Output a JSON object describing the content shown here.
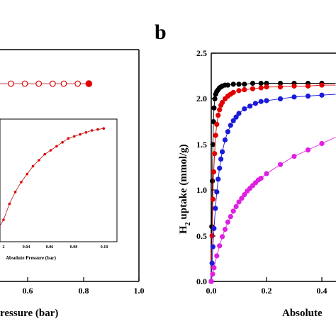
{
  "panel_b_label": "b",
  "left": {
    "xlabel": "ressure (bar)",
    "xticks": [
      "0.6",
      "0.8",
      "1.0"
    ],
    "inset_xlabel": "Absolute Pressure (bar)",
    "inset_xticks": [
      "2",
      "0.04",
      "0.06",
      "0.08",
      "0.10"
    ]
  },
  "right": {
    "ylabel_main": "H",
    "ylabel_sub": "2",
    "ylabel_rest": " uptake (mmol/g)",
    "xlabel": "Absolute",
    "yticks": [
      "0.0",
      "0.5",
      "1.0",
      "1.5",
      "2.0",
      "2.5"
    ],
    "xticks": [
      "0.0",
      "0.2",
      "0.4"
    ]
  },
  "colors": {
    "red": "#e00000",
    "black": "#000000",
    "blue": "#1a1adb",
    "magenta": "#e020e0",
    "darkred": "#b01010"
  },
  "chart_data": [
    {
      "type": "scatter",
      "panel": "a (partially visible)",
      "xlim": [
        0.45,
        1.0
      ],
      "series": [
        {
          "x": [
            0.48,
            0.54,
            0.59,
            0.64,
            0.69,
            0.73,
            0.78,
            0.82
          ],
          "y": [
            2.12,
            2.12,
            2.12,
            2.12,
            2.12,
            2.12,
            2.12,
            2.13
          ]
        }
      ]
    },
    {
      "type": "line",
      "panel": "a inset",
      "xlim": [
        0.02,
        0.105
      ],
      "series": [
        {
          "x": [
            0.02,
            0.025,
            0.03,
            0.035,
            0.04,
            0.045,
            0.05,
            0.055,
            0.06,
            0.065,
            0.07,
            0.075,
            0.08,
            0.085,
            0.09,
            0.095,
            0.1,
            0.105
          ],
          "y": [
            0.5,
            0.58,
            0.64,
            0.69,
            0.73,
            0.77,
            0.8,
            0.83,
            0.85,
            0.87,
            0.89,
            0.91,
            0.92,
            0.93,
            0.94,
            0.95,
            0.955,
            0.96
          ]
        }
      ]
    },
    {
      "type": "line",
      "panel": "b",
      "xlim": [
        0.0,
        0.45
      ],
      "ylim": [
        0.0,
        2.5
      ],
      "series": [
        {
          "color": "black",
          "x": [
            0,
            0.002,
            0.004,
            0.006,
            0.008,
            0.01,
            0.013,
            0.016,
            0.02,
            0.025,
            0.03,
            0.035,
            0.04,
            0.05,
            0.06,
            0.08,
            0.1,
            0.12,
            0.15,
            0.18,
            0.2,
            0.25,
            0.3,
            0.35,
            0.4,
            0.45
          ],
          "y": [
            0,
            0.6,
            1.1,
            1.5,
            1.75,
            1.9,
            2.0,
            2.05,
            2.08,
            2.1,
            2.12,
            2.13,
            2.14,
            2.15,
            2.15,
            2.16,
            2.16,
            2.16,
            2.17,
            2.17,
            2.17,
            2.17,
            2.17,
            2.17,
            2.17,
            2.17
          ]
        },
        {
          "color": "red",
          "x": [
            0,
            0.003,
            0.006,
            0.009,
            0.012,
            0.016,
            0.02,
            0.025,
            0.03,
            0.035,
            0.04,
            0.05,
            0.06,
            0.07,
            0.08,
            0.1,
            0.12,
            0.15,
            0.18,
            0.2,
            0.25,
            0.3,
            0.35,
            0.4,
            0.45
          ],
          "y": [
            0,
            0.5,
            0.9,
            1.2,
            1.4,
            1.6,
            1.72,
            1.82,
            1.88,
            1.93,
            1.96,
            2.0,
            2.03,
            2.05,
            2.07,
            2.09,
            2.1,
            2.11,
            2.12,
            2.13,
            2.13,
            2.14,
            2.14,
            2.15,
            2.15
          ]
        },
        {
          "color": "blue",
          "x": [
            0,
            0.003,
            0.006,
            0.01,
            0.015,
            0.02,
            0.025,
            0.03,
            0.035,
            0.04,
            0.05,
            0.06,
            0.07,
            0.08,
            0.09,
            0.1,
            0.12,
            0.14,
            0.16,
            0.18,
            0.2,
            0.25,
            0.3,
            0.35,
            0.4,
            0.45
          ],
          "y": [
            0,
            0.2,
            0.38,
            0.58,
            0.8,
            0.98,
            1.12,
            1.24,
            1.34,
            1.42,
            1.55,
            1.64,
            1.71,
            1.76,
            1.8,
            1.84,
            1.89,
            1.92,
            1.95,
            1.97,
            1.98,
            2.0,
            2.02,
            2.03,
            2.04,
            2.05
          ]
        },
        {
          "color": "magenta",
          "x": [
            0,
            0.005,
            0.01,
            0.02,
            0.03,
            0.04,
            0.05,
            0.06,
            0.07,
            0.08,
            0.09,
            0.1,
            0.11,
            0.12,
            0.13,
            0.14,
            0.15,
            0.16,
            0.17,
            0.18,
            0.2,
            0.25,
            0.3,
            0.35,
            0.4,
            0.45
          ],
          "y": [
            0,
            0.08,
            0.15,
            0.28,
            0.39,
            0.49,
            0.57,
            0.65,
            0.71,
            0.77,
            0.82,
            0.87,
            0.91,
            0.95,
            0.99,
            1.02,
            1.05,
            1.08,
            1.11,
            1.13,
            1.18,
            1.28,
            1.37,
            1.44,
            1.51,
            1.58
          ]
        }
      ]
    }
  ]
}
